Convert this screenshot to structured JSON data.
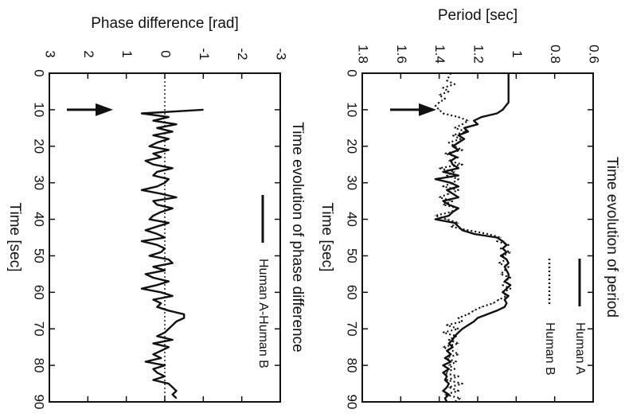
{
  "chart_data": [
    {
      "type": "line",
      "title": "Time evolution of period",
      "xlabel": "Time [sec]",
      "ylabel": "Period [sec]",
      "xlim": [
        0,
        90
      ],
      "ylim": [
        0.6,
        1.8
      ],
      "xticks": [
        "0",
        "10",
        "20",
        "30",
        "40",
        "50",
        "60",
        "70",
        "80",
        "90"
      ],
      "yticks": [
        "0.6",
        "0.8",
        "1",
        "1.2",
        "1.4",
        "1.6",
        "1.8"
      ],
      "legend_position": "bottom-right",
      "annotation": "arrow at t = 10 sec",
      "series": [
        {
          "name": "Human A",
          "style": "solid",
          "x": [
            0,
            2,
            4,
            6,
            8,
            10,
            11,
            12,
            13,
            14,
            15,
            16,
            17,
            18,
            19,
            20,
            21,
            22,
            23,
            24,
            25,
            26,
            27,
            28,
            29,
            30,
            31,
            32,
            33,
            34,
            35,
            36,
            37,
            38,
            39,
            40,
            41,
            42,
            43,
            44,
            45,
            46,
            47,
            48,
            49,
            50,
            51,
            52,
            53,
            54,
            55,
            56,
            57,
            58,
            59,
            60,
            61,
            62,
            63,
            64,
            65,
            66,
            67,
            68,
            69,
            70,
            71,
            72,
            73,
            74,
            75,
            76,
            77,
            78,
            79,
            80,
            81,
            82,
            83,
            84,
            85,
            86,
            87,
            88,
            89,
            90
          ],
          "values": [
            1.04,
            1.04,
            1.04,
            1.04,
            1.04,
            1.07,
            1.1,
            1.18,
            1.22,
            1.2,
            1.27,
            1.25,
            1.3,
            1.27,
            1.3,
            1.33,
            1.3,
            1.35,
            1.31,
            1.34,
            1.33,
            1.3,
            1.38,
            1.3,
            1.42,
            1.34,
            1.3,
            1.36,
            1.33,
            1.3,
            1.38,
            1.35,
            1.3,
            1.33,
            1.35,
            1.42,
            1.32,
            1.3,
            1.28,
            1.22,
            1.1,
            1.07,
            1.05,
            1.07,
            1.05,
            1.08,
            1.05,
            1.04,
            1.06,
            1.05,
            1.04,
            1.04,
            1.06,
            1.03,
            1.05,
            1.07,
            1.04,
            1.06,
            1.05,
            1.06,
            1.1,
            1.15,
            1.2,
            1.22,
            1.25,
            1.28,
            1.3,
            1.32,
            1.33,
            1.35,
            1.33,
            1.36,
            1.34,
            1.37,
            1.34,
            1.38,
            1.35,
            1.38,
            1.36,
            1.37,
            1.35,
            1.36,
            1.38,
            1.35,
            1.37,
            1.36
          ]
        },
        {
          "name": "Human B",
          "style": "dotted",
          "x": [
            0,
            2,
            3,
            4,
            5,
            6,
            7,
            8,
            9,
            10,
            11,
            12,
            13,
            14,
            15,
            16,
            17,
            18,
            19,
            20,
            21,
            22,
            23,
            24,
            25,
            26,
            27,
            28,
            29,
            30,
            31,
            32,
            33,
            34,
            35,
            36,
            37,
            38,
            39,
            40,
            41,
            42,
            43,
            44,
            45,
            46,
            47,
            48,
            49,
            50,
            51,
            52,
            53,
            54,
            55,
            56,
            57,
            58,
            59,
            60,
            61,
            62,
            63,
            64,
            65,
            66,
            67,
            68,
            69,
            70,
            71,
            72,
            73,
            74,
            75,
            76,
            77,
            78,
            79,
            80,
            81,
            82,
            83,
            84,
            85,
            86,
            87,
            88,
            89,
            90
          ],
          "values": [
            1.34,
            1.36,
            1.32,
            1.38,
            1.35,
            1.4,
            1.37,
            1.4,
            1.42,
            1.4,
            1.38,
            1.3,
            1.25,
            1.28,
            1.32,
            1.26,
            1.33,
            1.29,
            1.35,
            1.32,
            1.28,
            1.37,
            1.3,
            1.35,
            1.28,
            1.4,
            1.32,
            1.36,
            1.3,
            1.33,
            1.38,
            1.3,
            1.35,
            1.4,
            1.33,
            1.38,
            1.3,
            1.34,
            1.42,
            1.36,
            1.3,
            1.34,
            1.25,
            1.15,
            1.08,
            1.1,
            1.04,
            1.08,
            1.03,
            1.07,
            1.05,
            1.09,
            1.04,
            1.06,
            1.08,
            1.03,
            1.06,
            1.07,
            1.03,
            1.07,
            1.05,
            1.09,
            1.12,
            1.18,
            1.22,
            1.25,
            1.3,
            1.28,
            1.36,
            1.3,
            1.38,
            1.31,
            1.35,
            1.3,
            1.38,
            1.33,
            1.3,
            1.37,
            1.31,
            1.35,
            1.32,
            1.38,
            1.3,
            1.36,
            1.28,
            1.35,
            1.3,
            1.37,
            1.29,
            1.32
          ]
        }
      ]
    },
    {
      "type": "line",
      "title": "Time evolution of phase difference",
      "xlabel": "Time [sec]",
      "ylabel": "Phase difference [rad]",
      "xlim": [
        0,
        90
      ],
      "ylim": [
        -3,
        3
      ],
      "xticks": [
        "0",
        "10",
        "20",
        "30",
        "40",
        "50",
        "60",
        "70",
        "80",
        "90"
      ],
      "yticks": [
        "-3",
        "-2",
        "-1",
        "0",
        "1",
        "2",
        "3"
      ],
      "reference_line": "dotted line at 0",
      "legend_position": "bottom-right",
      "annotation": "arrow at t = 10 sec",
      "series": [
        {
          "name": "Human A-Human B",
          "style": "solid",
          "x": [
            10,
            11,
            12,
            13,
            14,
            15,
            16,
            17,
            18,
            19,
            20,
            21,
            22,
            23,
            24,
            25,
            26,
            27,
            28,
            29,
            30,
            31,
            32,
            33,
            34,
            35,
            36,
            37,
            38,
            39,
            40,
            41,
            42,
            43,
            44,
            45,
            46,
            47,
            48,
            49,
            50,
            51,
            52,
            53,
            54,
            55,
            56,
            57,
            58,
            59,
            60,
            61,
            62,
            63,
            64,
            65,
            66,
            67,
            68,
            69,
            70,
            71,
            72,
            73,
            74,
            75,
            76,
            77,
            78,
            79,
            80,
            81,
            82,
            83,
            84,
            85,
            86,
            87,
            88,
            89
          ],
          "values": [
            -1.0,
            0.6,
            -0.1,
            0.3,
            -0.3,
            0.2,
            -0.2,
            0.3,
            -0.1,
            0.2,
            0.4,
            -0.1,
            0.3,
            0.1,
            0.5,
            0.3,
            -0.2,
            0.2,
            0.3,
            -0.1,
            0.0,
            0.2,
            0.6,
            0.1,
            -0.3,
            0.3,
            0.2,
            -0.2,
            0.1,
            0.3,
            0.4,
            -0.1,
            0.2,
            0.5,
            0.2,
            0.0,
            0.6,
            0.2,
            0.0,
            0.1,
            0.4,
            -0.1,
            -0.2,
            0.3,
            0.0,
            0.5,
            0.3,
            -0.1,
            0.2,
            0.6,
            0.1,
            -0.2,
            0.3,
            0.1,
            0.2,
            -0.1,
            -0.5,
            -0.5,
            -0.3,
            -0.2,
            -0.1,
            0.0,
            0.2,
            -0.2,
            0.3,
            -0.1,
            0.1,
            0.3,
            0.1,
            0.5,
            0.0,
            0.3,
            0.2,
            0.0,
            0.3,
            -0.1,
            -0.2,
            -0.3,
            -0.2,
            -0.3
          ]
        }
      ]
    }
  ]
}
